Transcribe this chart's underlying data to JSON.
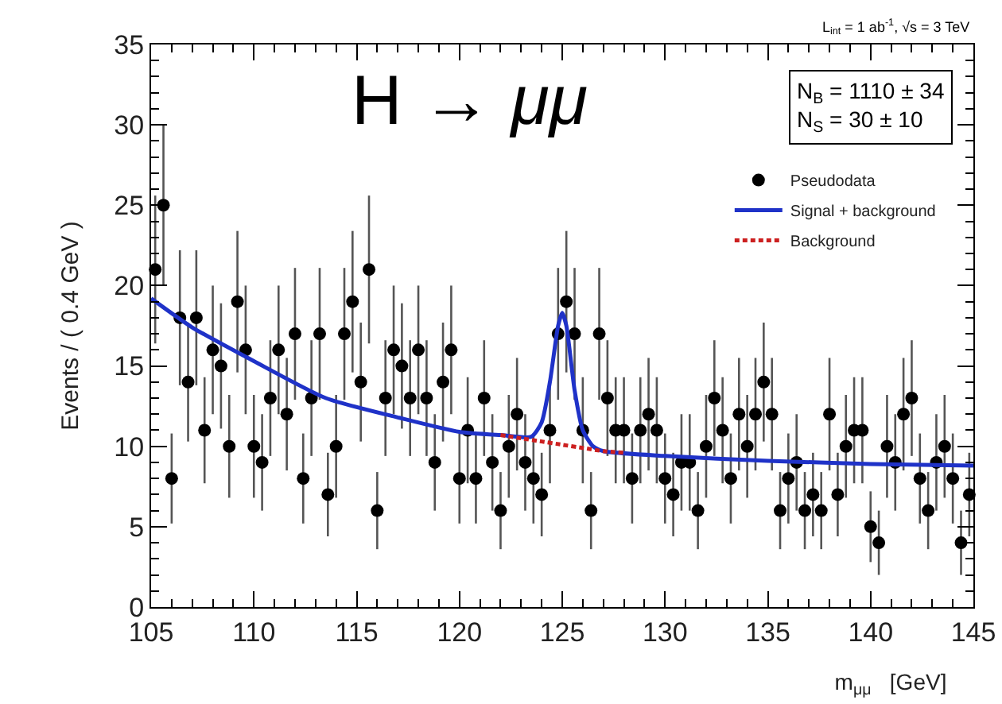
{
  "chart_data": {
    "type": "scatter",
    "xlabel": "m$_{μμ}$   [GeV]",
    "ylabel": "Events / ( 0.4 GeV )",
    "annotations": [
      "H → μμ",
      "N$_{B}$ = 1110 ± 34",
      "N$_{S}$ = 30 ± 10",
      "L$_{int}$ = 1 ab$^{-1}$, √s = 3 TeV"
    ],
    "xlim": [
      105,
      145
    ],
    "xticks": [
      105,
      110,
      115,
      120,
      125,
      130,
      135,
      140,
      145
    ],
    "ylim": [
      0,
      35
    ],
    "yticks": [
      0,
      5,
      10,
      15,
      20,
      25,
      30,
      35
    ],
    "grid": false,
    "legend": "top right",
    "series": [
      {
        "name": "Pseudodata",
        "type": "scatter",
        "marker": "circle",
        "color": "#000000",
        "x": [
          105.2,
          105.6,
          106.0,
          106.4,
          106.8,
          107.2,
          107.6,
          108.0,
          108.4,
          108.8,
          109.2,
          109.6,
          110.0,
          110.4,
          110.8,
          111.2,
          111.6,
          112.0,
          112.4,
          112.8,
          113.2,
          113.6,
          114.0,
          114.4,
          114.8,
          115.2,
          115.6,
          116.0,
          116.4,
          116.8,
          117.2,
          117.6,
          118.0,
          118.4,
          118.8,
          119.2,
          119.6,
          120.0,
          120.4,
          120.8,
          121.2,
          121.6,
          122.0,
          122.4,
          122.8,
          123.2,
          123.6,
          124.0,
          124.4,
          124.8,
          125.2,
          125.6,
          126.0,
          126.4,
          126.8,
          127.2,
          127.6,
          128.0,
          128.4,
          128.8,
          129.2,
          129.6,
          130.0,
          130.4,
          130.8,
          131.2,
          131.6,
          132.0,
          132.4,
          132.8,
          133.2,
          133.6,
          134.0,
          134.4,
          134.8,
          135.2,
          135.6,
          136.0,
          136.4,
          136.8,
          137.2,
          137.6,
          138.0,
          138.4,
          138.8,
          139.2,
          139.6,
          140.0,
          140.4,
          140.8,
          141.2,
          141.6,
          142.0,
          142.4,
          142.8,
          143.2,
          143.6,
          144.0,
          144.4,
          144.8
        ],
        "values": [
          21,
          25,
          8,
          18,
          14,
          18,
          11,
          16,
          15,
          10,
          19,
          16,
          10,
          9,
          13,
          16,
          12,
          17,
          8,
          13,
          17,
          7,
          10,
          17,
          19,
          14,
          21,
          6,
          13,
          16,
          15,
          13,
          16,
          13,
          9,
          14,
          16,
          8,
          11,
          8,
          13,
          9,
          6,
          10,
          12,
          9,
          8,
          7,
          11,
          17,
          19,
          17,
          11,
          6,
          17,
          13,
          11,
          11,
          8,
          11,
          12,
          11,
          8,
          7,
          9,
          9,
          6,
          10,
          13,
          11,
          8,
          12,
          10,
          12,
          14,
          12,
          6,
          8,
          9,
          6,
          7,
          6,
          12,
          7,
          10,
          11,
          11,
          5,
          4,
          10,
          9,
          12,
          13,
          8,
          6,
          9,
          10,
          8,
          4,
          7
        ],
        "errors": [
          4.6,
          5,
          2.8,
          4.2,
          3.7,
          4.2,
          3.3,
          4,
          3.9,
          3.2,
          4.4,
          4,
          3.2,
          3,
          3.6,
          4,
          3.5,
          4.1,
          2.8,
          3.6,
          4.1,
          2.6,
          3.2,
          4.1,
          4.4,
          3.7,
          4.6,
          2.4,
          3.6,
          4,
          3.9,
          3.6,
          4,
          3.6,
          3,
          3.7,
          4,
          2.8,
          3.3,
          2.8,
          3.6,
          3,
          2.4,
          3.2,
          3.5,
          3,
          2.8,
          2.6,
          3.3,
          4.1,
          4.4,
          4.1,
          3.3,
          2.4,
          4.1,
          3.6,
          3.3,
          3.3,
          2.8,
          3.3,
          3.5,
          3.3,
          2.8,
          2.6,
          3,
          3,
          2.4,
          3.2,
          3.6,
          3.3,
          2.8,
          3.5,
          3.2,
          3.5,
          3.7,
          3.5,
          2.4,
          2.8,
          3,
          2.4,
          2.6,
          2.4,
          3.5,
          2.6,
          3.2,
          3.3,
          3.3,
          2.2,
          2,
          3.2,
          3,
          3.5,
          3.6,
          2.8,
          2.4,
          3,
          3.2,
          2.8,
          2,
          2.6
        ]
      },
      {
        "name": "Signal + background",
        "type": "line",
        "marker": "none",
        "line_style": "solid",
        "color": "#1f32c8",
        "x": [
          105,
          107,
          110,
          113.5,
          117,
          120,
          122,
          123.5,
          124,
          124.4,
          124.8,
          125,
          125.2,
          125.6,
          126,
          126.5,
          127,
          130,
          135,
          140,
          145
        ],
        "values": [
          19.2,
          17.4,
          15.3,
          13.0,
          11.8,
          10.9,
          10.7,
          10.6,
          11.5,
          14,
          17.5,
          18.3,
          17.5,
          13.5,
          11,
          10,
          9.7,
          9.4,
          9.1,
          8.9,
          8.8
        ]
      },
      {
        "name": "Background",
        "type": "line",
        "marker": "none",
        "line_style": "dotted",
        "color": "#cc2020",
        "x": [
          122,
          123,
          124,
          125,
          126,
          127,
          128
        ],
        "values": [
          10.7,
          10.5,
          10.3,
          10.1,
          9.9,
          9.7,
          9.6
        ]
      }
    ]
  }
}
